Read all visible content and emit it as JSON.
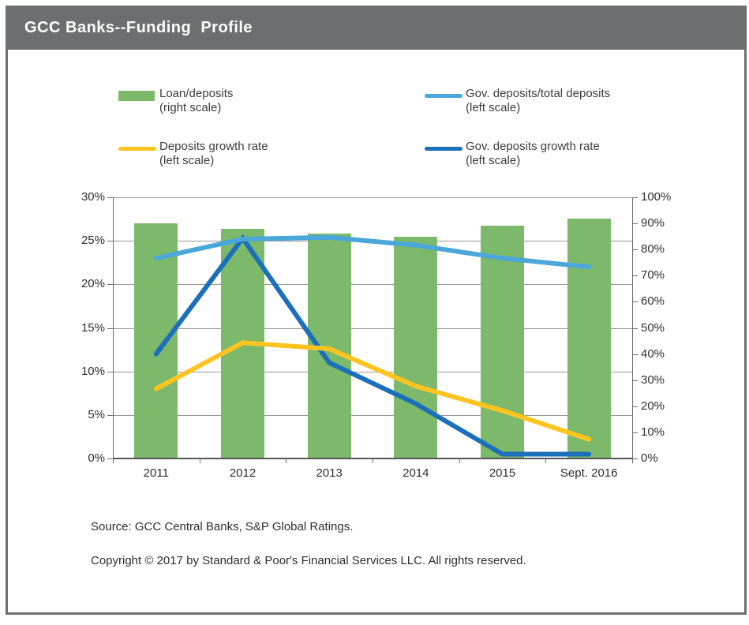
{
  "header": {
    "title": "GCC Banks--Funding  Profile"
  },
  "legend": {
    "items": [
      {
        "label": "Loan/deposits",
        "scale_note": "(right scale)",
        "swatch": "bar",
        "color": "#7cb96b"
      },
      {
        "label": "Gov. deposits/total deposits",
        "scale_note": "(left scale)",
        "swatch": "line",
        "color": "#4ba7d9"
      },
      {
        "label": "Deposits growth rate",
        "scale_note": "(left scale)",
        "swatch": "line",
        "color": "#ffc420"
      },
      {
        "label": "Gov. deposits growth rate",
        "scale_note": "(left scale)",
        "swatch": "line",
        "color": "#1c6fba"
      }
    ]
  },
  "chart_data": {
    "type": "bar",
    "subtype": "combo bar+line, dual axis",
    "categories": [
      "2011",
      "2012",
      "2013",
      "2014",
      "2015",
      "Sept. 2016"
    ],
    "series": [
      {
        "name": "Loan/deposits (right scale)",
        "type": "bar",
        "axis": "right",
        "color": "#7cb96b",
        "values": [
          90,
          88,
          86,
          85,
          89,
          92
        ]
      },
      {
        "name": "Gov. deposits/total deposits (left scale)",
        "type": "line",
        "axis": "left",
        "color": "#4ba7d9",
        "values": [
          23,
          25.2,
          25.4,
          24.5,
          23,
          22
        ]
      },
      {
        "name": "Deposits growth rate (left scale)",
        "type": "line",
        "axis": "left",
        "color": "#ffc420",
        "values": [
          8,
          13.3,
          12.6,
          8.3,
          5.5,
          2.2
        ]
      },
      {
        "name": "Gov. deposits growth rate (left scale)",
        "type": "line",
        "axis": "left",
        "color": "#1c6fba",
        "values": [
          12,
          25.3,
          11,
          6.3,
          0.5,
          0.5
        ]
      }
    ],
    "left_axis": {
      "min": 0,
      "max": 30,
      "step": 5,
      "tick_labels_top_down": [
        "30%",
        "25%",
        "20%",
        "15%",
        "10%",
        "5%",
        "0%"
      ]
    },
    "right_axis": {
      "min": 0,
      "max": 100,
      "step": 10,
      "tick_labels_top_down": [
        "100%",
        "90%",
        "80%",
        "70%",
        "60%",
        "50%",
        "40%",
        "30%",
        "20%",
        "10%",
        "0%"
      ]
    },
    "grid": "horizontal gridlines at left-axis steps",
    "legend_position": "top, two columns"
  },
  "footer": {
    "source": "Source: GCC Central Banks, S&P Global Ratings.",
    "copyright": "Copyright © 2017 by Standard & Poor's Financial Services LLC. All rights reserved."
  }
}
